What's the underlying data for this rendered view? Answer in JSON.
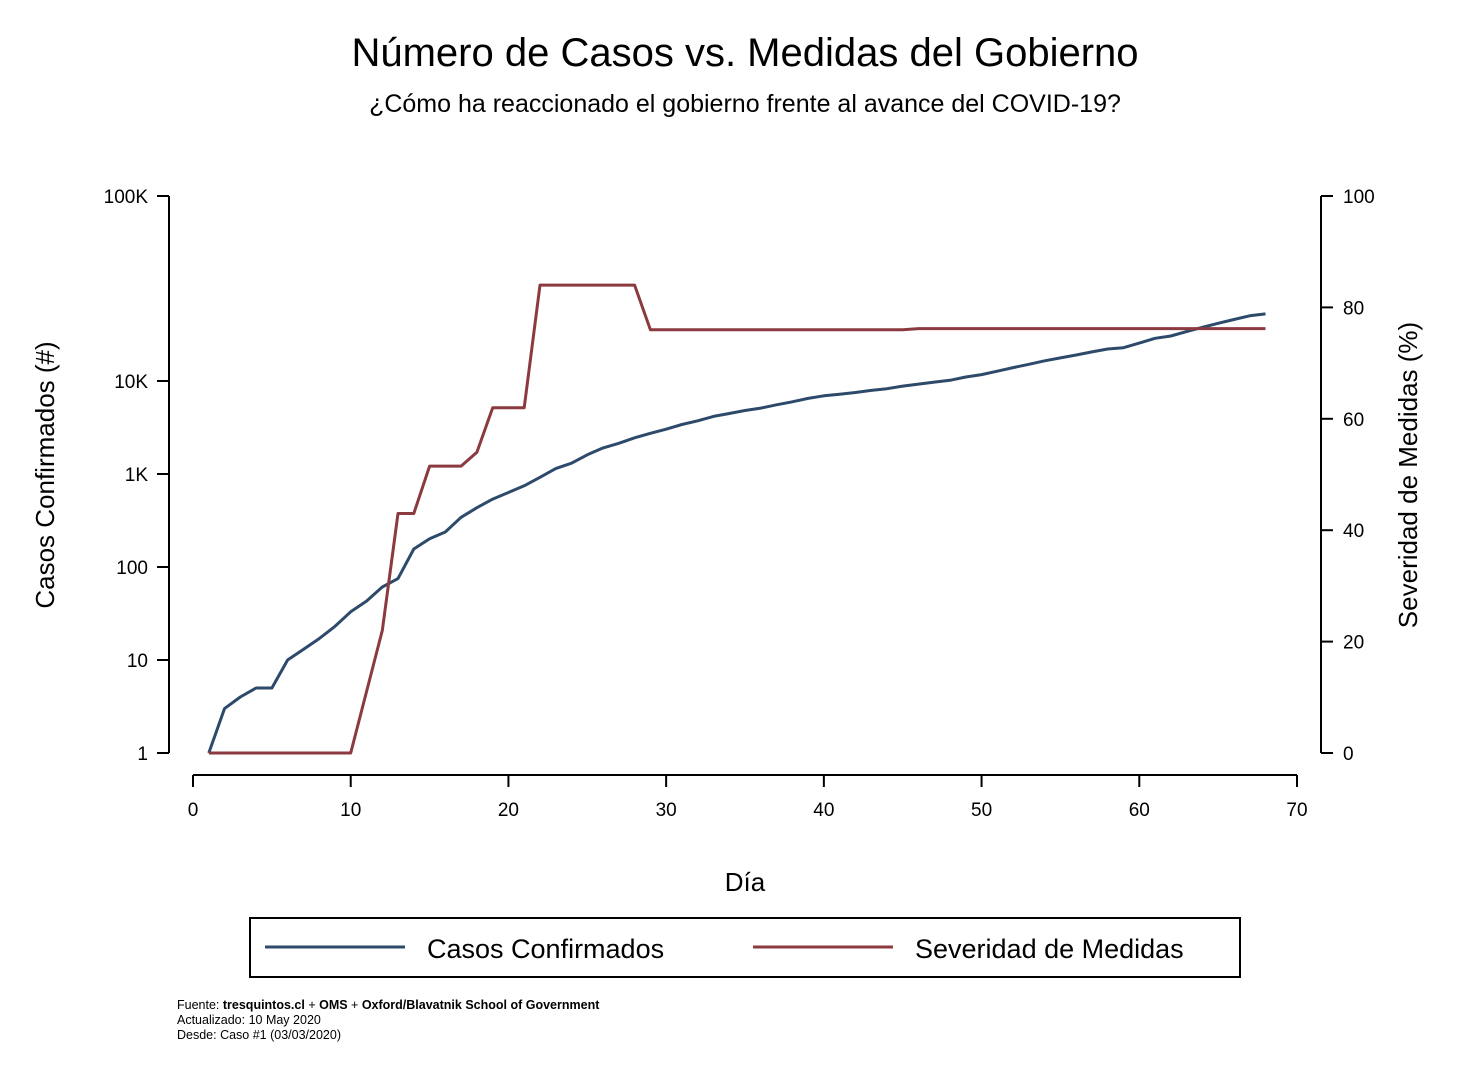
{
  "chart_data": {
    "type": "line",
    "title": "Número de Casos vs. Medidas del Gobierno",
    "subtitle": "¿Cómo ha reaccionado el gobierno frente al avance del COVID-19?",
    "xlabel": "Día",
    "ylabel_left": "Casos Confirmados (#)",
    "ylabel_right": "Severidad de Medidas (%)",
    "xlim": [
      0,
      70
    ],
    "x_ticks": [
      0,
      10,
      20,
      30,
      40,
      50,
      60,
      70
    ],
    "y_left_scale": "log (irregular spacing)",
    "y_left_ticks": [
      {
        "value": 1,
        "label": "1"
      },
      {
        "value": 10,
        "label": "10"
      },
      {
        "value": 100,
        "label": "100"
      },
      {
        "value": 1000,
        "label": "1K"
      },
      {
        "value": 10000,
        "label": "10K"
      },
      {
        "value": 100000,
        "label": "100K"
      }
    ],
    "ylim_right": [
      0,
      100
    ],
    "y_right_ticks": [
      0,
      20,
      40,
      60,
      80,
      100
    ],
    "grid": false,
    "legend_position": "bottom",
    "series": [
      {
        "name": "Casos Confirmados",
        "axis": "left",
        "color": "#2e4a6b",
        "x": [
          1,
          2,
          3,
          4,
          5,
          6,
          7,
          8,
          9,
          10,
          11,
          12,
          13,
          14,
          15,
          16,
          17,
          18,
          19,
          20,
          21,
          22,
          23,
          24,
          25,
          26,
          27,
          28,
          29,
          30,
          31,
          32,
          33,
          34,
          35,
          36,
          37,
          38,
          39,
          40,
          41,
          42,
          43,
          44,
          45,
          46,
          47,
          48,
          49,
          50,
          51,
          52,
          53,
          54,
          55,
          56,
          57,
          58,
          59,
          60,
          61,
          62,
          63,
          64,
          65,
          66,
          67,
          68
        ],
        "values": [
          1,
          3,
          4,
          5,
          5,
          10,
          13,
          17,
          23,
          33,
          43,
          61,
          75,
          156,
          201,
          238,
          342,
          434,
          537,
          632,
          746,
          922,
          1142,
          1306,
          1610,
          1909,
          2139,
          2449,
          2738,
          3031,
          3404,
          3737,
          4161,
          4471,
          4815,
          5116,
          5546,
          5972,
          6501,
          6927,
          7213,
          7525,
          7917,
          8273,
          8807,
          9252,
          9730,
          10088,
          10507,
          10832,
          11296,
          11812,
          12306,
          12858,
          13331,
          13813,
          14365,
          14885,
          15135,
          16023,
          17008,
          17500,
          18500,
          19500,
          20500,
          21500,
          22500,
          23048
        ]
      },
      {
        "name": "Severidad de Medidas",
        "axis": "right",
        "color": "#8b3a3f",
        "x": [
          1,
          2,
          3,
          4,
          5,
          6,
          7,
          8,
          9,
          10,
          11,
          12,
          13,
          14,
          15,
          16,
          17,
          18,
          19,
          20,
          21,
          22,
          23,
          24,
          25,
          26,
          27,
          28,
          29,
          30,
          31,
          32,
          33,
          34,
          35,
          36,
          37,
          38,
          39,
          40,
          41,
          42,
          43,
          44,
          45,
          46,
          47,
          48,
          49,
          50,
          51,
          52,
          53,
          54,
          55,
          56,
          57,
          58,
          59,
          60,
          61,
          62,
          63,
          64,
          65,
          66,
          67,
          68
        ],
        "values": [
          0,
          0,
          0,
          0,
          0,
          0,
          0,
          0,
          0,
          0,
          11,
          22,
          43,
          43,
          51.5,
          51.5,
          51.5,
          54,
          62,
          62,
          62,
          84,
          84,
          84,
          84,
          84,
          84,
          84,
          76,
          76,
          76,
          76,
          76,
          76,
          76,
          76,
          76,
          76,
          76,
          76,
          76,
          76,
          76,
          76,
          76,
          76.2,
          76.2,
          76.2,
          76.2,
          76.2,
          76.2,
          76.2,
          76.2,
          76.2,
          76.2,
          76.2,
          76.2,
          76.2,
          76.2,
          76.2,
          76.2,
          76.2,
          76.2,
          76.2,
          76.2,
          76.2,
          76.2,
          76.2
        ]
      }
    ]
  },
  "footer": {
    "source_prefix": "Fuente: ",
    "source_bold_1": "tresquintos.cl",
    "source_mid_1": " + ",
    "source_bold_2": "OMS",
    "source_mid_2": " + ",
    "source_bold_3": "Oxford/Blavatnik School of Government",
    "updated": "Actualizado: 10 May 2020",
    "since": "Desde: Caso #1 (03/03/2020)"
  }
}
